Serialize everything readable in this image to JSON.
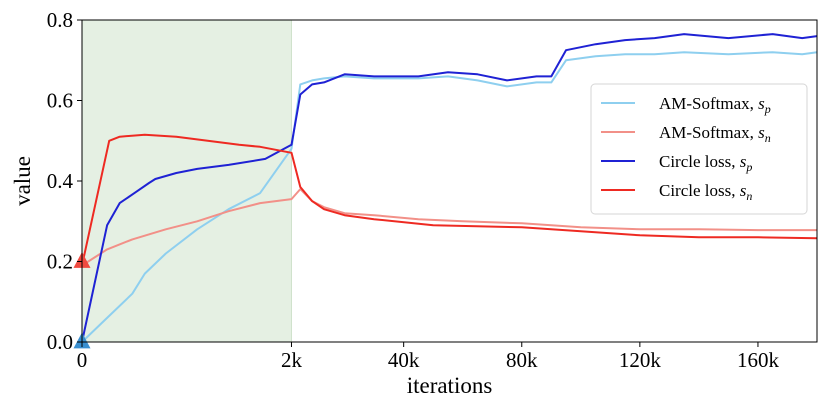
{
  "chart_data": {
    "type": "line",
    "xlabel": "iterations",
    "ylabel": "value",
    "ylim": [
      0,
      0.8
    ],
    "yticks": [
      0.0,
      0.2,
      0.4,
      0.6,
      0.8
    ],
    "ytick_labels": [
      "0.0",
      "0.2",
      "0.4",
      "0.6",
      "0.8"
    ],
    "xticks": [
      0,
      2000,
      40000,
      80000,
      120000,
      160000
    ],
    "xtick_labels": [
      "0",
      "2k",
      "40k",
      "80k",
      "120k",
      "160k"
    ],
    "x_axis_segments": [
      {
        "from": 0,
        "to": 2000,
        "share": 0.285
      },
      {
        "from": 2000,
        "to": 180000,
        "share": 0.715
      }
    ],
    "shaded_region": {
      "x": [
        0,
        2000
      ],
      "color": "#e5f0e3"
    },
    "legend": {
      "placement": "right"
    },
    "series": [
      {
        "name": "AM-Softmax, ",
        "subscript": "p",
        "color": "#8ecfef",
        "points": [
          [
            0,
            0.0
          ],
          [
            240,
            0.06
          ],
          [
            480,
            0.12
          ],
          [
            600,
            0.17
          ],
          [
            800,
            0.22
          ],
          [
            1100,
            0.28
          ],
          [
            1400,
            0.33
          ],
          [
            1700,
            0.37
          ],
          [
            2000,
            0.48
          ],
          [
            5000,
            0.64
          ],
          [
            9000,
            0.65
          ],
          [
            13000,
            0.655
          ],
          [
            20000,
            0.66
          ],
          [
            30000,
            0.655
          ],
          [
            45000,
            0.655
          ],
          [
            55000,
            0.66
          ],
          [
            65000,
            0.65
          ],
          [
            75000,
            0.635
          ],
          [
            85000,
            0.645
          ],
          [
            90000,
            0.645
          ],
          [
            95000,
            0.7
          ],
          [
            105000,
            0.71
          ],
          [
            115000,
            0.715
          ],
          [
            125000,
            0.715
          ],
          [
            135000,
            0.72
          ],
          [
            150000,
            0.715
          ],
          [
            165000,
            0.72
          ],
          [
            175000,
            0.715
          ],
          [
            180000,
            0.72
          ]
        ]
      },
      {
        "name": "AM-Softmax, ",
        "subscript": "n",
        "color": "#f29088",
        "points": [
          [
            0,
            0.19
          ],
          [
            240,
            0.23
          ],
          [
            480,
            0.255
          ],
          [
            800,
            0.28
          ],
          [
            1100,
            0.3
          ],
          [
            1400,
            0.325
          ],
          [
            1700,
            0.345
          ],
          [
            2000,
            0.355
          ],
          [
            5000,
            0.38
          ],
          [
            9000,
            0.35
          ],
          [
            13000,
            0.335
          ],
          [
            20000,
            0.32
          ],
          [
            30000,
            0.315
          ],
          [
            45000,
            0.305
          ],
          [
            60000,
            0.3
          ],
          [
            80000,
            0.295
          ],
          [
            100000,
            0.285
          ],
          [
            120000,
            0.28
          ],
          [
            140000,
            0.28
          ],
          [
            160000,
            0.278
          ],
          [
            180000,
            0.278
          ]
        ]
      },
      {
        "name": "Circle loss, ",
        "subscript": "p",
        "color": "#1f22d4",
        "points": [
          [
            0,
            0.0
          ],
          [
            240,
            0.29
          ],
          [
            360,
            0.345
          ],
          [
            500,
            0.37
          ],
          [
            640,
            0.395
          ],
          [
            700,
            0.405
          ],
          [
            900,
            0.42
          ],
          [
            1100,
            0.43
          ],
          [
            1400,
            0.44
          ],
          [
            1750,
            0.455
          ],
          [
            2000,
            0.49
          ],
          [
            5000,
            0.615
          ],
          [
            9000,
            0.64
          ],
          [
            13000,
            0.645
          ],
          [
            20000,
            0.665
          ],
          [
            30000,
            0.66
          ],
          [
            45000,
            0.66
          ],
          [
            55000,
            0.67
          ],
          [
            65000,
            0.665
          ],
          [
            75000,
            0.65
          ],
          [
            85000,
            0.66
          ],
          [
            90000,
            0.66
          ],
          [
            95000,
            0.725
          ],
          [
            105000,
            0.74
          ],
          [
            115000,
            0.75
          ],
          [
            125000,
            0.755
          ],
          [
            135000,
            0.765
          ],
          [
            150000,
            0.755
          ],
          [
            165000,
            0.765
          ],
          [
            175000,
            0.755
          ],
          [
            180000,
            0.76
          ]
        ]
      },
      {
        "name": "Circle loss, ",
        "subscript": "n",
        "color": "#ee2a22",
        "points": [
          [
            0,
            0.19
          ],
          [
            260,
            0.5
          ],
          [
            360,
            0.51
          ],
          [
            600,
            0.515
          ],
          [
            900,
            0.51
          ],
          [
            1200,
            0.5
          ],
          [
            1500,
            0.49
          ],
          [
            1700,
            0.485
          ],
          [
            2000,
            0.47
          ],
          [
            5000,
            0.385
          ],
          [
            9000,
            0.35
          ],
          [
            13000,
            0.33
          ],
          [
            20000,
            0.315
          ],
          [
            30000,
            0.305
          ],
          [
            50000,
            0.29
          ],
          [
            80000,
            0.285
          ],
          [
            100000,
            0.275
          ],
          [
            120000,
            0.265
          ],
          [
            140000,
            0.26
          ],
          [
            160000,
            0.26
          ],
          [
            180000,
            0.258
          ]
        ]
      }
    ],
    "start_markers": [
      {
        "x": 0,
        "y": 0.2,
        "color": "#f04a40"
      },
      {
        "x": 0,
        "y": 0.0,
        "color": "#3a8fd0"
      }
    ]
  }
}
